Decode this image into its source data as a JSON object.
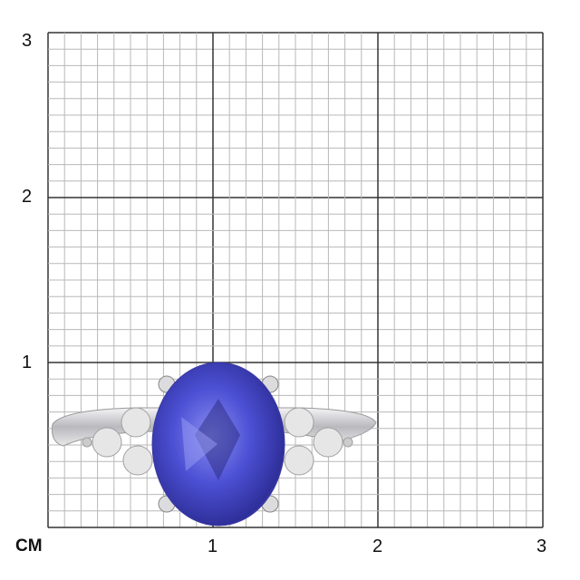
{
  "unit_label": "CM",
  "y_ticks": [
    "3",
    "2",
    "1"
  ],
  "x_ticks": [
    "1",
    "2",
    "3"
  ],
  "colors": {
    "grid_minor": "#b8b8b8",
    "grid_major": "#333333",
    "stone": "#4a4fd0",
    "metal": "#d8d8dc"
  }
}
